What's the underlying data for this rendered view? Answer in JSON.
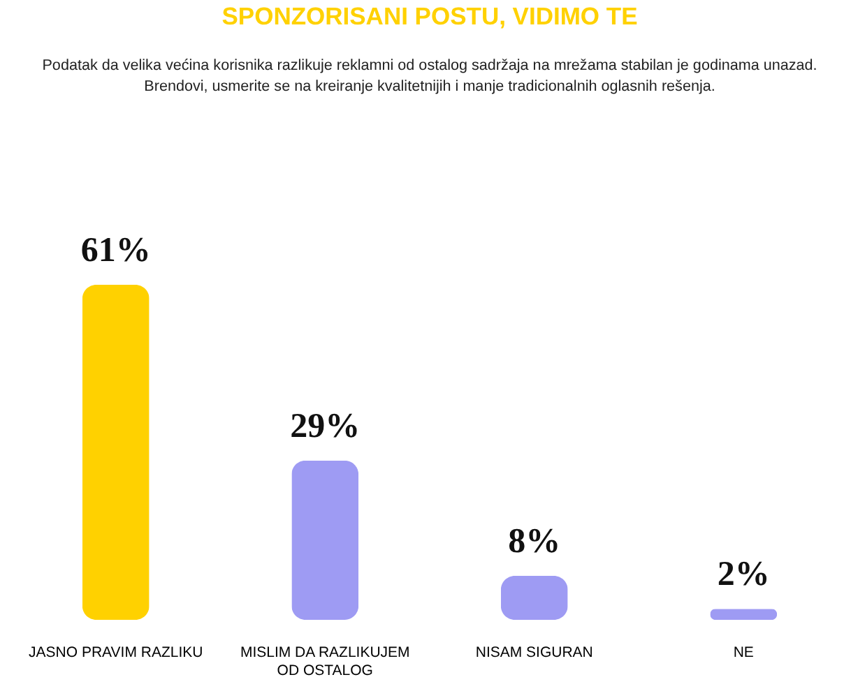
{
  "chart_data": {
    "type": "bar",
    "title": "SPONZORISANI POSTU, VIDIMO TE",
    "subtitle": "Podatak da velika većina korisnika razlikuje reklamni od ostalog sadržaja na mrežama stabilan je godinama unazad.\nBrendovi, usmerite se na kreiranje kvalitetnijih i manje tradicionalnih oglasnih rešenja.",
    "categories": [
      "JASNO PRAVIM RAZLIKU",
      "MISLIM DA RAZLIKUJEM OD OSTALOG",
      "NISAM SIGURAN",
      "NE"
    ],
    "values": [
      61,
      29,
      8,
      2
    ],
    "colors": [
      "#ffd100",
      "#9e9bf3",
      "#9e9bf3",
      "#9e9bf3"
    ],
    "value_labels": [
      "61%",
      "29%",
      "8%",
      "2%"
    ]
  }
}
